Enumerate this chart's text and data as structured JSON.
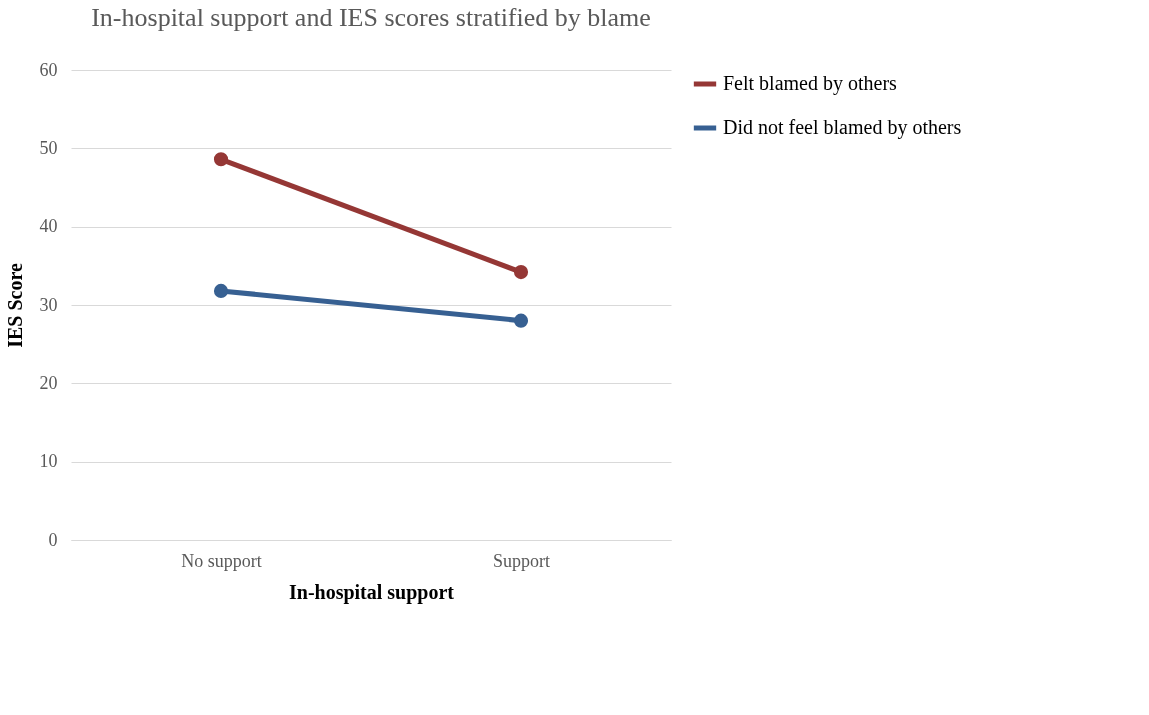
{
  "chart_data": {
    "type": "line",
    "title": "In-hospital support and IES scores stratified by blame",
    "xlabel": "In-hospital support",
    "ylabel": "IES Score",
    "categories": [
      "No support",
      "Support"
    ],
    "series": [
      {
        "name": "Felt blamed by others",
        "color": "#953735",
        "values": [
          48.6,
          34.2
        ]
      },
      {
        "name": "Did not feel blamed by others",
        "color": "#376092",
        "values": [
          31.8,
          28.0
        ]
      }
    ],
    "ylim": [
      0,
      60
    ],
    "yticks": [
      0,
      10,
      20,
      30,
      40,
      50,
      60
    ],
    "grid": "y",
    "legend": "right",
    "marker": "circle",
    "line_style": "solid"
  }
}
